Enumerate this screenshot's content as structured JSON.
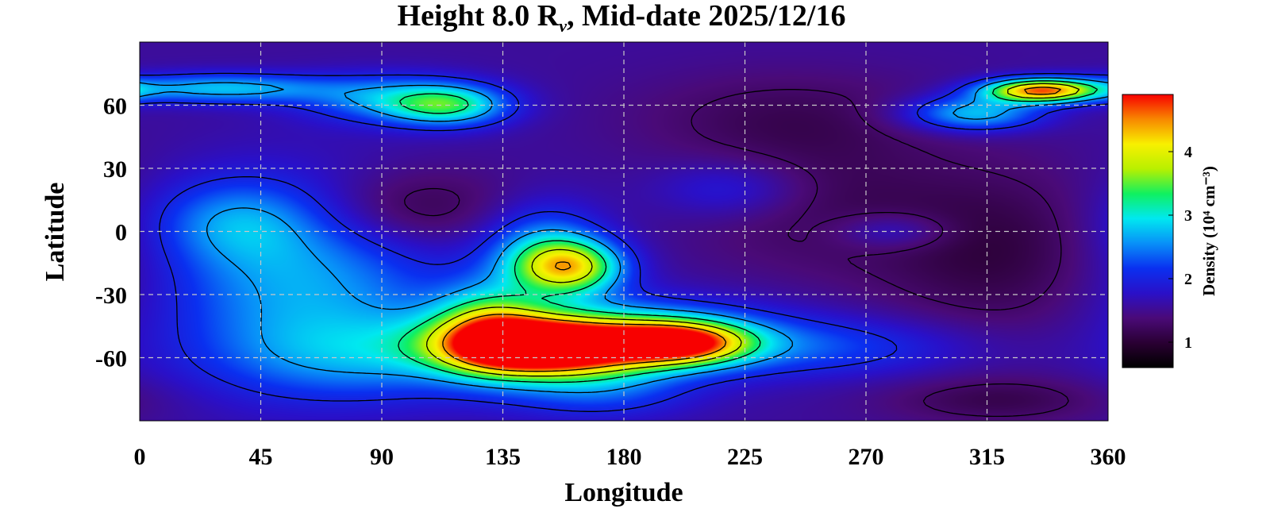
{
  "chart_data": {
    "type": "heatmap",
    "title_prefix": "Height 8.0 R",
    "title_subscript": "ν",
    "title_suffix": ", Mid-date 2025/12/16",
    "xlabel": "Longitude",
    "ylabel": "Latitude",
    "x_ticks": [
      "0",
      "45",
      "90",
      "135",
      "180",
      "225",
      "270",
      "315",
      "360"
    ],
    "y_ticks": [
      "60",
      "30",
      "0",
      "-30",
      "-60"
    ],
    "xlim": [
      0,
      360
    ],
    "ylim": [
      -90,
      90
    ],
    "x_tick_values": [
      0,
      45,
      90,
      135,
      180,
      225,
      270,
      315,
      360
    ],
    "y_tick_values": [
      60,
      30,
      0,
      -30,
      -60
    ],
    "grid": true,
    "grid_style": "dashed",
    "colorbar": {
      "label": "Density (10⁴ cm⁻³)",
      "ticks": [
        "1",
        "2",
        "3",
        "4"
      ],
      "tick_values": [
        1,
        2,
        3,
        4
      ],
      "range": [
        0.6,
        4.9
      ],
      "colors": [
        "#000000",
        "#2a0033",
        "#4a0a78",
        "#2a10c8",
        "#0a30f0",
        "#0890f8",
        "#00e8f0",
        "#10f060",
        "#b8f000",
        "#f8f000",
        "#f88800",
        "#f80000"
      ]
    },
    "background_value": 1.55,
    "features": [
      {
        "lon": 150,
        "lat": -55,
        "amp": 3.6,
        "slon": 24,
        "slat": 9
      },
      {
        "lon": 200,
        "lat": -53,
        "amp": 2.6,
        "slon": 18,
        "slat": 7
      },
      {
        "lon": 175,
        "lat": -50,
        "amp": 1.5,
        "slon": 40,
        "slat": 12
      },
      {
        "lon": 160,
        "lat": -17,
        "amp": 2.1,
        "slon": 14,
        "slat": 9
      },
      {
        "lon": 150,
        "lat": -8,
        "amp": 1.0,
        "slon": 16,
        "slat": 15
      },
      {
        "lon": 130,
        "lat": -45,
        "amp": 1.4,
        "slon": 14,
        "slat": 14
      },
      {
        "lon": 60,
        "lat": -25,
        "amp": 1.1,
        "slon": 38,
        "slat": 32
      },
      {
        "lon": 35,
        "lat": 5,
        "amp": 0.7,
        "slon": 22,
        "slat": 14
      },
      {
        "lon": 90,
        "lat": -60,
        "amp": 0.7,
        "slon": 40,
        "slat": 14
      },
      {
        "lon": 170,
        "lat": -75,
        "amp": 0.7,
        "slon": 25,
        "slat": 10
      },
      {
        "lon": 255,
        "lat": -55,
        "amp": 0.6,
        "slon": 40,
        "slat": 10
      },
      {
        "lon": 115,
        "lat": 60,
        "amp": 1.5,
        "slon": 16,
        "slat": 7
      },
      {
        "lon": 90,
        "lat": 63,
        "amp": 0.9,
        "slon": 22,
        "slat": 8
      },
      {
        "lon": 30,
        "lat": 68,
        "amp": 1.2,
        "slon": 28,
        "slat": 5
      },
      {
        "lon": 310,
        "lat": 56,
        "amp": 1.3,
        "slon": 18,
        "slat": 6
      },
      {
        "lon": 335,
        "lat": 67,
        "amp": 2.9,
        "slon": 15,
        "slat": 4
      },
      {
        "lon": 280,
        "lat": 0,
        "amp": 0.5,
        "slon": 15,
        "slat": 6
      },
      {
        "lon": 220,
        "lat": 20,
        "amp": 0.5,
        "slon": 20,
        "slat": 10
      },
      {
        "lon": 100,
        "lat": 10,
        "amp": -0.6,
        "slon": 28,
        "slat": 14
      },
      {
        "lon": 320,
        "lat": -10,
        "amp": -0.5,
        "slon": 32,
        "slat": 28
      },
      {
        "lon": 250,
        "lat": 15,
        "amp": -0.35,
        "slon": 35,
        "slat": 25
      },
      {
        "lon": 320,
        "lat": -80,
        "amp": -0.4,
        "slon": 30,
        "slat": 8
      },
      {
        "lon": 240,
        "lat": 55,
        "amp": -0.3,
        "slon": 40,
        "slat": 15
      }
    ]
  }
}
